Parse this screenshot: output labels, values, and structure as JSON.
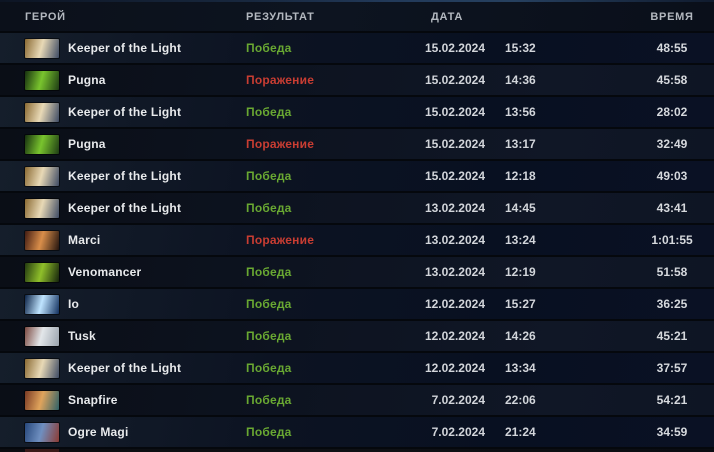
{
  "table": {
    "columns": [
      {
        "key": "hero",
        "label": "ГЕРОЙ"
      },
      {
        "key": "result",
        "label": "РЕЗУЛЬТАТ"
      },
      {
        "key": "date",
        "label": "ДАТА"
      },
      {
        "key": "time",
        "label": "ВРЕМЯ"
      }
    ]
  },
  "colors": {
    "win": "#69a832",
    "loss": "#c93d32"
  },
  "rows": [
    {
      "hero": "Keeper of the Light",
      "result": "Победа",
      "result_type": "win",
      "date": "15.02.2024",
      "time": "15:32",
      "duration": "48:55",
      "portrait": [
        "#8a6a33",
        "#e8d9b6",
        "#3d4a63"
      ]
    },
    {
      "hero": "Pugna",
      "result": "Поражение",
      "result_type": "loss",
      "date": "15.02.2024",
      "time": "14:36",
      "duration": "45:58",
      "portrait": [
        "#16300f",
        "#79c42e",
        "#1e3c14"
      ]
    },
    {
      "hero": "Keeper of the Light",
      "result": "Победа",
      "result_type": "win",
      "date": "15.02.2024",
      "time": "13:56",
      "duration": "28:02",
      "portrait": [
        "#8a6a33",
        "#e8d9b6",
        "#3d4a63"
      ]
    },
    {
      "hero": "Pugna",
      "result": "Поражение",
      "result_type": "loss",
      "date": "15.02.2024",
      "time": "13:17",
      "duration": "32:49",
      "portrait": [
        "#16300f",
        "#79c42e",
        "#1e3c14"
      ]
    },
    {
      "hero": "Keeper of the Light",
      "result": "Победа",
      "result_type": "win",
      "date": "15.02.2024",
      "time": "12:18",
      "duration": "49:03",
      "portrait": [
        "#8a6a33",
        "#e8d9b6",
        "#3d4a63"
      ]
    },
    {
      "hero": "Keeper of the Light",
      "result": "Победа",
      "result_type": "win",
      "date": "13.02.2024",
      "time": "14:45",
      "duration": "43:41",
      "portrait": [
        "#8a6a33",
        "#e8d9b6",
        "#3d4a63"
      ]
    },
    {
      "hero": "Marci",
      "result": "Поражение",
      "result_type": "loss",
      "date": "13.02.2024",
      "time": "13:24",
      "duration": "1:01:55",
      "portrait": [
        "#431c12",
        "#d98e4a",
        "#24140f"
      ]
    },
    {
      "hero": "Venomancer",
      "result": "Победа",
      "result_type": "win",
      "date": "13.02.2024",
      "time": "12:19",
      "duration": "51:58",
      "portrait": [
        "#233a10",
        "#8fbf2a",
        "#15230c"
      ]
    },
    {
      "hero": "Io",
      "result": "Победа",
      "result_type": "win",
      "date": "12.02.2024",
      "time": "15:27",
      "duration": "36:25",
      "portrait": [
        "#0d2448",
        "#bfe4ff",
        "#12305e"
      ]
    },
    {
      "hero": "Tusk",
      "result": "Победа",
      "result_type": "win",
      "date": "12.02.2024",
      "time": "14:26",
      "duration": "45:21",
      "portrait": [
        "#7c4a42",
        "#e3e7ea",
        "#9aa3ad"
      ]
    },
    {
      "hero": "Keeper of the Light",
      "result": "Победа",
      "result_type": "win",
      "date": "12.02.2024",
      "time": "13:34",
      "duration": "37:57",
      "portrait": [
        "#8a6a33",
        "#e8d9b6",
        "#3d4a63"
      ]
    },
    {
      "hero": "Snapfire",
      "result": "Победа",
      "result_type": "win",
      "date": "7.02.2024",
      "time": "22:06",
      "duration": "54:21",
      "portrait": [
        "#7a3a24",
        "#e0a45c",
        "#2e6168"
      ]
    },
    {
      "hero": "Ogre Magi",
      "result": "Победа",
      "result_type": "win",
      "date": "7.02.2024",
      "time": "21:24",
      "duration": "34:59",
      "portrait": [
        "#27487c",
        "#6f8fc0",
        "#8c3b33"
      ]
    }
  ]
}
